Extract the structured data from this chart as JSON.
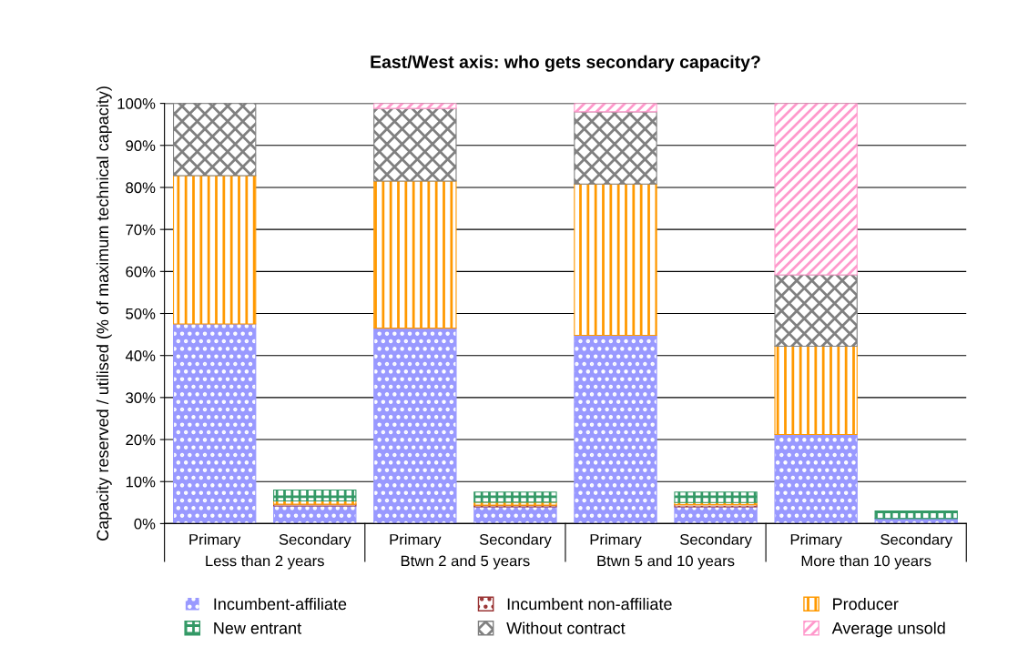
{
  "chart_data": {
    "type": "bar",
    "title": "East/West axis: who gets secondary capacity?",
    "ylabel": "Capacity reserved / utilised (% of maximum technical capacity)",
    "categories": [
      "Primary",
      "Secondary",
      "Primary",
      "Secondary",
      "Primary",
      "Secondary",
      "Primary",
      "Secondary"
    ],
    "annotations": [
      "Less than 2 years",
      "Btwn 2 and 5 years",
      "Btwn 5 and 10 years",
      "More than 10 years"
    ],
    "stacked": true,
    "series": [
      {
        "name": "Incumbent-affiliate",
        "color": "#9999ff",
        "values": [
          47.5,
          4.2,
          46.5,
          4.0,
          44.8,
          4.0,
          21.2,
          1.2
        ]
      },
      {
        "name": "Incumbent non-affiliate",
        "color": "#993333",
        "values": [
          0,
          0.4,
          0,
          0.4,
          0,
          0.5,
          0,
          0
        ]
      },
      {
        "name": "Producer",
        "color": "#ff9900",
        "values": [
          35.3,
          0.8,
          35.0,
          0.7,
          36.0,
          0.5,
          21.0,
          0
        ]
      },
      {
        "name": "New entrant",
        "color": "#339966",
        "values": [
          0,
          2.6,
          0,
          2.4,
          0,
          2.5,
          0,
          1.8
        ]
      },
      {
        "name": "Without contract",
        "color": "#808080",
        "values": [
          17.2,
          0,
          17.3,
          0,
          17.2,
          0,
          17.0,
          0
        ]
      },
      {
        "name": "Average unsold",
        "color": "#ff99cc",
        "values": [
          0,
          0,
          1.2,
          0,
          2.0,
          0,
          40.8,
          0
        ]
      }
    ],
    "ylim": [
      0,
      100
    ],
    "yticks": [
      {
        "value": 0,
        "label": "0%"
      },
      {
        "value": 10,
        "label": "10%"
      },
      {
        "value": 20,
        "label": "20%"
      },
      {
        "value": 30,
        "label": "30%"
      },
      {
        "value": 40,
        "label": "40%"
      },
      {
        "value": 50,
        "label": "50%"
      },
      {
        "value": 60,
        "label": "60%"
      },
      {
        "value": 70,
        "label": "70%"
      },
      {
        "value": 80,
        "label": "80%"
      },
      {
        "value": 90,
        "label": "90%"
      },
      {
        "value": 100,
        "label": "100%"
      }
    ],
    "grid": "y",
    "legend": "bottom"
  }
}
